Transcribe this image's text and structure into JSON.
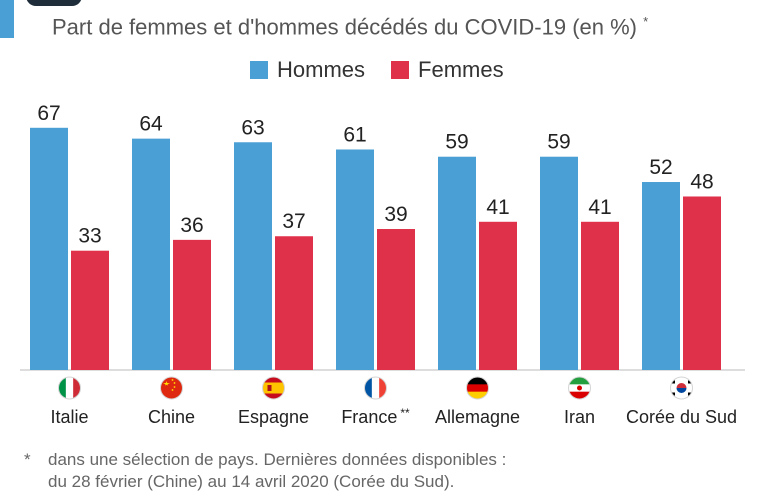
{
  "colors": {
    "men": "#4a9fd5",
    "women": "#e0314b",
    "accent": "#4a9fd5"
  },
  "header": {
    "subtitle": "Part de femmes et d'hommes décédés du COVID-19 (en %)",
    "subtitle_mark": "*"
  },
  "legend": {
    "men": "Hommes",
    "women": "Femmes"
  },
  "chart_data": {
    "type": "bar",
    "categories": [
      "Italie",
      "Chine",
      "Espagne",
      "France",
      "Allemagne",
      "Iran",
      "Corée du Sud"
    ],
    "category_marks": [
      "",
      "",
      "",
      "**",
      "",
      "",
      ""
    ],
    "flags": [
      "italy-flag",
      "china-flag",
      "spain-flag",
      "france-flag",
      "germany-flag",
      "iran-flag",
      "south-korea-flag"
    ],
    "series": [
      {
        "name": "Hommes",
        "values": [
          67,
          64,
          63,
          61,
          59,
          59,
          52
        ]
      },
      {
        "name": "Femmes",
        "values": [
          33,
          36,
          37,
          39,
          41,
          41,
          48
        ]
      }
    ],
    "ylim": [
      0,
      70
    ],
    "grid": false,
    "legend_position": "top-center"
  },
  "footnote": {
    "mark": "*",
    "line1": "dans une sélection de pays. Dernières données disponibles :",
    "line2": "du 28 février (Chine) au 14 avril 2020 (Corée du Sud)."
  }
}
